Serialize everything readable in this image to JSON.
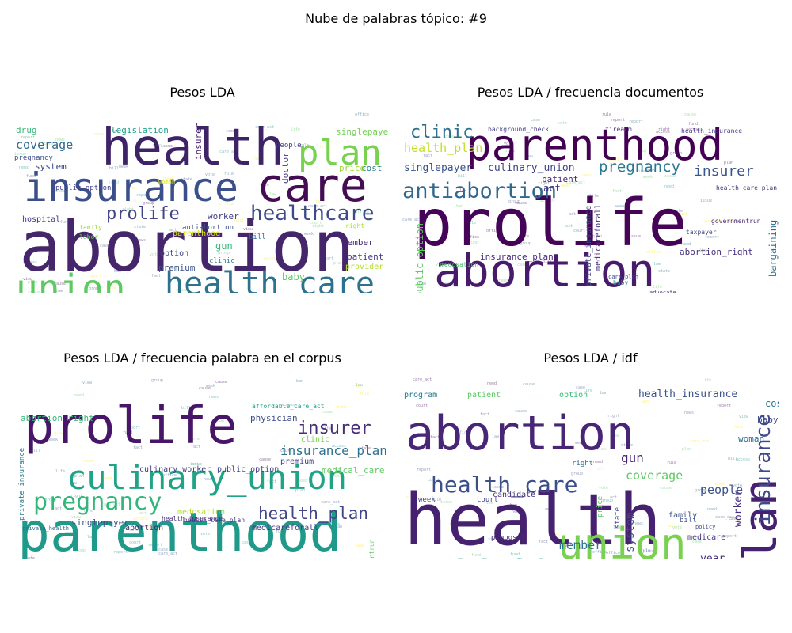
{
  "title": "Nube de palabras tópico: #9",
  "chart_data": [
    {
      "type": "wordcloud",
      "title": "Pesos LDA",
      "words": [
        {
          "text": "abortion",
          "size": 88,
          "color": "#46266b"
        },
        {
          "text": "health",
          "size": 64,
          "color": "#3e2466"
        },
        {
          "text": "insurance",
          "size": 50,
          "color": "#3b4f8a"
        },
        {
          "text": "care",
          "size": 58,
          "color": "#440c52"
        },
        {
          "text": "union",
          "size": 46,
          "color": "#5ec962"
        },
        {
          "text": "health_care",
          "size": 40,
          "color": "#2c728e"
        },
        {
          "text": "plan",
          "size": 44,
          "color": "#7ad151"
        },
        {
          "text": "healthcare",
          "size": 26,
          "color": "#3e4a89"
        },
        {
          "text": "prolife",
          "size": 22,
          "color": "#414487"
        },
        {
          "text": "coverage",
          "size": 15,
          "color": "#31688e"
        },
        {
          "text": "health_insurance",
          "size": 13,
          "color": "#482576"
        },
        {
          "text": "medicare",
          "size": 12,
          "color": "#423f85"
        },
        {
          "text": "baby",
          "size": 12,
          "color": "#5cc863"
        },
        {
          "text": "premium",
          "size": 11,
          "color": "#3b528b"
        },
        {
          "text": "gun",
          "size": 12,
          "color": "#35b779"
        },
        {
          "text": "worker",
          "size": 11,
          "color": "#433e85"
        },
        {
          "text": "option",
          "size": 10,
          "color": "#3f4788"
        },
        {
          "text": "member",
          "size": 11,
          "color": "#482677"
        },
        {
          "text": "patient",
          "size": 11,
          "color": "#453781"
        },
        {
          "text": "provider",
          "size": 10,
          "color": "#b5de2b"
        },
        {
          "text": "legislation",
          "size": 11,
          "color": "#1fa088"
        },
        {
          "text": "doctor",
          "size": 11,
          "color": "#46337e"
        },
        {
          "text": "insurer",
          "size": 11,
          "color": "#482173"
        },
        {
          "text": "singlepayer",
          "size": 11,
          "color": "#73d056"
        },
        {
          "text": "cost",
          "size": 11,
          "color": "#27808e"
        },
        {
          "text": "price",
          "size": 11,
          "color": "#a2da37"
        },
        {
          "text": "parenthood",
          "size": 10,
          "color": "#d8e219"
        },
        {
          "text": "drug",
          "size": 11,
          "color": "#38b977"
        },
        {
          "text": "system",
          "size": 11,
          "color": "#3e4989"
        },
        {
          "text": "hospital",
          "size": 10,
          "color": "#453882"
        },
        {
          "text": "antiabortion",
          "size": 9,
          "color": "#3b528b"
        },
        {
          "text": "clinic",
          "size": 9,
          "color": "#26828e"
        },
        {
          "text": "bill",
          "size": 9,
          "color": "#2e6d8e"
        },
        {
          "text": "public_option",
          "size": 9,
          "color": "#433d84"
        },
        {
          "text": "pregnancy",
          "size": 9,
          "color": "#3d4d8a"
        },
        {
          "text": "culinary_union",
          "size": 8,
          "color": "#8fd744"
        },
        {
          "text": "labor",
          "size": 8,
          "color": "#6ece58"
        },
        {
          "text": "family",
          "size": 8,
          "color": "#99d83d"
        },
        {
          "text": "people",
          "size": 9,
          "color": "#453882"
        },
        {
          "text": "right",
          "size": 8,
          "color": "#ade028"
        },
        {
          "text": "woman",
          "size": 7,
          "color": "#d8e219"
        }
      ]
    },
    {
      "type": "wordcloud",
      "title": "Pesos LDA / frecuencia documentos",
      "words": [
        {
          "text": "prolife",
          "size": 82,
          "color": "#450457"
        },
        {
          "text": "parenthood",
          "size": 54,
          "color": "#440154"
        },
        {
          "text": "abortion",
          "size": 58,
          "color": "#481a6c"
        },
        {
          "text": "antiabortion",
          "size": 27,
          "color": "#31688e"
        },
        {
          "text": "clinic",
          "size": 22,
          "color": "#2d708e"
        },
        {
          "text": "pregnancy",
          "size": 19,
          "color": "#2a788e"
        },
        {
          "text": "insurer",
          "size": 18,
          "color": "#39568c"
        },
        {
          "text": "health_plan",
          "size": 15,
          "color": "#c2df23"
        },
        {
          "text": "singlepayer",
          "size": 13,
          "color": "#3b528b"
        },
        {
          "text": "culinary_union",
          "size": 13,
          "color": "#414487"
        },
        {
          "text": "public_option",
          "size": 12,
          "color": "#5ec962"
        },
        {
          "text": "bargaining",
          "size": 12,
          "color": "#2e6f8e"
        },
        {
          "text": "insurance_plan",
          "size": 11,
          "color": "#482878"
        },
        {
          "text": "abortion_right",
          "size": 11,
          "color": "#46327e"
        },
        {
          "text": "premium",
          "size": 11,
          "color": "#3b528b"
        },
        {
          "text": "physician",
          "size": 11,
          "color": "#3e4a89"
        },
        {
          "text": "culinary_worker",
          "size": 10,
          "color": "#443b84"
        },
        {
          "text": "union_member",
          "size": 11,
          "color": "#2c728e"
        },
        {
          "text": "medicareforall",
          "size": 10,
          "color": "#46327e"
        },
        {
          "text": "private_insurance",
          "size": 10,
          "color": "#3f4788"
        },
        {
          "text": "patient",
          "size": 11,
          "color": "#482475"
        },
        {
          "text": "act",
          "size": 12,
          "color": "#46327e"
        },
        {
          "text": "health_insurance",
          "size": 8,
          "color": "#443983"
        },
        {
          "text": "medcsation",
          "size": 8,
          "color": "#4ac16d"
        },
        {
          "text": "firearm",
          "size": 8,
          "color": "#46337e"
        },
        {
          "text": "background_check",
          "size": 8,
          "color": "#433e85"
        },
        {
          "text": "provider",
          "size": 8,
          "color": "#c2df23"
        },
        {
          "text": "health_care_plan",
          "size": 8,
          "color": "#46327e"
        },
        {
          "text": "taxpayer",
          "size": 8,
          "color": "#3e4989"
        },
        {
          "text": "advocate",
          "size": 7,
          "color": "#443a83"
        },
        {
          "text": "baby",
          "size": 8,
          "color": "#26828e"
        },
        {
          "text": "care_plan",
          "size": 7,
          "color": "#3f4889"
        },
        {
          "text": "governmentrun",
          "size": 8,
          "color": "#482677"
        }
      ]
    },
    {
      "type": "wordcloud",
      "title": "Pesos LDA / frecuencia palabra en el corpus",
      "words": [
        {
          "text": "parenthood",
          "size": 68,
          "color": "#1f9a8a"
        },
        {
          "text": "prolife",
          "size": 64,
          "color": "#481668"
        },
        {
          "text": "culinary_union",
          "size": 42,
          "color": "#20a386"
        },
        {
          "text": "antiabortion",
          "size": 38,
          "color": "#414487"
        },
        {
          "text": "pregnancy",
          "size": 30,
          "color": "#32b67a"
        },
        {
          "text": "insurer",
          "size": 22,
          "color": "#472d7b"
        },
        {
          "text": "health_plan",
          "size": 21,
          "color": "#404688"
        },
        {
          "text": "insurance_plan",
          "size": 16,
          "color": "#2d718e"
        },
        {
          "text": "bargaining",
          "size": 14,
          "color": "#433e85"
        },
        {
          "text": "union_member",
          "size": 14,
          "color": "#3b528b"
        },
        {
          "text": "abortion_right",
          "size": 11,
          "color": "#38b977"
        },
        {
          "text": "physician",
          "size": 11,
          "color": "#3e4a89"
        },
        {
          "text": "singlepayer",
          "size": 11,
          "color": "#3b528b"
        },
        {
          "text": "medical_care",
          "size": 11,
          "color": "#5ec962"
        },
        {
          "text": "premium",
          "size": 10,
          "color": "#433e85"
        },
        {
          "text": "culinary_worker",
          "size": 10,
          "color": "#433e85"
        },
        {
          "text": "public_option",
          "size": 10,
          "color": "#433e85"
        },
        {
          "text": "clinic",
          "size": 10,
          "color": "#7ad151"
        },
        {
          "text": "medcsation",
          "size": 10,
          "color": "#b5de2b"
        },
        {
          "text": "medicareforall",
          "size": 10,
          "color": "#453882"
        },
        {
          "text": "abortion",
          "size": 10,
          "color": "#482475"
        },
        {
          "text": "private_insurance",
          "size": 9,
          "color": "#2a788e"
        },
        {
          "text": "health_care_plan",
          "size": 8,
          "color": "#453781"
        },
        {
          "text": "health_insurance",
          "size": 8,
          "color": "#46327e"
        },
        {
          "text": "affordable_care_act",
          "size": 8,
          "color": "#1fa088"
        },
        {
          "text": "governmentrun",
          "size": 8,
          "color": "#5ec962"
        },
        {
          "text": "private_health",
          "size": 7,
          "color": "#31688e"
        }
      ]
    },
    {
      "type": "wordcloud",
      "title": "Pesos LDA / idf",
      "words": [
        {
          "text": "health",
          "size": 90,
          "color": "#46216f"
        },
        {
          "text": "abortion",
          "size": 60,
          "color": "#482576"
        },
        {
          "text": "care",
          "size": 58,
          "color": "#1fa088"
        },
        {
          "text": "union",
          "size": 54,
          "color": "#7ad151"
        },
        {
          "text": "plan",
          "size": 58,
          "color": "#46216f"
        },
        {
          "text": "insurance",
          "size": 26,
          "color": "#3e4a89"
        },
        {
          "text": "health_care",
          "size": 28,
          "color": "#3b4f8a"
        },
        {
          "text": "healthcare",
          "size": 18,
          "color": "#3e4a89"
        },
        {
          "text": "coverage",
          "size": 15,
          "color": "#5ec962"
        },
        {
          "text": "people",
          "size": 15,
          "color": "#3b528b"
        },
        {
          "text": "member",
          "size": 15,
          "color": "#2c728e"
        },
        {
          "text": "gun",
          "size": 16,
          "color": "#482173"
        },
        {
          "text": "system",
          "size": 14,
          "color": "#3f4788"
        },
        {
          "text": "worker",
          "size": 13,
          "color": "#46337e"
        },
        {
          "text": "year",
          "size": 13,
          "color": "#46327e"
        },
        {
          "text": "health_insurance",
          "size": 13,
          "color": "#3b528b"
        },
        {
          "text": "cost",
          "size": 12,
          "color": "#2a788e"
        },
        {
          "text": "baby",
          "size": 11,
          "color": "#3e4989"
        },
        {
          "text": "woman",
          "size": 11,
          "color": "#2e6f8e"
        },
        {
          "text": "medicare",
          "size": 10,
          "color": "#453882"
        },
        {
          "text": "doctor",
          "size": 10,
          "color": "#3f4788"
        },
        {
          "text": "family",
          "size": 10,
          "color": "#3b528b"
        },
        {
          "text": "prolife",
          "size": 11,
          "color": "#433e85"
        },
        {
          "text": "drug",
          "size": 11,
          "color": "#3e4a89"
        },
        {
          "text": "legislation",
          "size": 10,
          "color": "#2a788e"
        },
        {
          "text": "service",
          "size": 10,
          "color": "#75d054"
        },
        {
          "text": "rule",
          "size": 10,
          "color": "#3f4788"
        },
        {
          "text": "hospital",
          "size": 10,
          "color": "#2d708e"
        },
        {
          "text": "program",
          "size": 10,
          "color": "#2a788e"
        },
        {
          "text": "patient",
          "size": 10,
          "color": "#5cc863"
        },
        {
          "text": "option",
          "size": 10,
          "color": "#38b977"
        },
        {
          "text": "candidate",
          "size": 10,
          "color": "#46327e"
        },
        {
          "text": "proposal",
          "size": 9,
          "color": "#46337e"
        },
        {
          "text": "right",
          "size": 9,
          "color": "#2e6f8e"
        },
        {
          "text": "price",
          "size": 9,
          "color": "#5ec962"
        },
        {
          "text": "week",
          "size": 9,
          "color": "#3f4788"
        },
        {
          "text": "court",
          "size": 9,
          "color": "#3f4788"
        },
        {
          "text": "bill",
          "size": 9,
          "color": "#3b528b"
        },
        {
          "text": "state",
          "size": 9,
          "color": "#3e4a89"
        },
        {
          "text": "policy",
          "size": 7,
          "color": "#3f4788"
        },
        {
          "text": "clinic",
          "size": 8,
          "color": "#5ec962"
        }
      ]
    }
  ]
}
